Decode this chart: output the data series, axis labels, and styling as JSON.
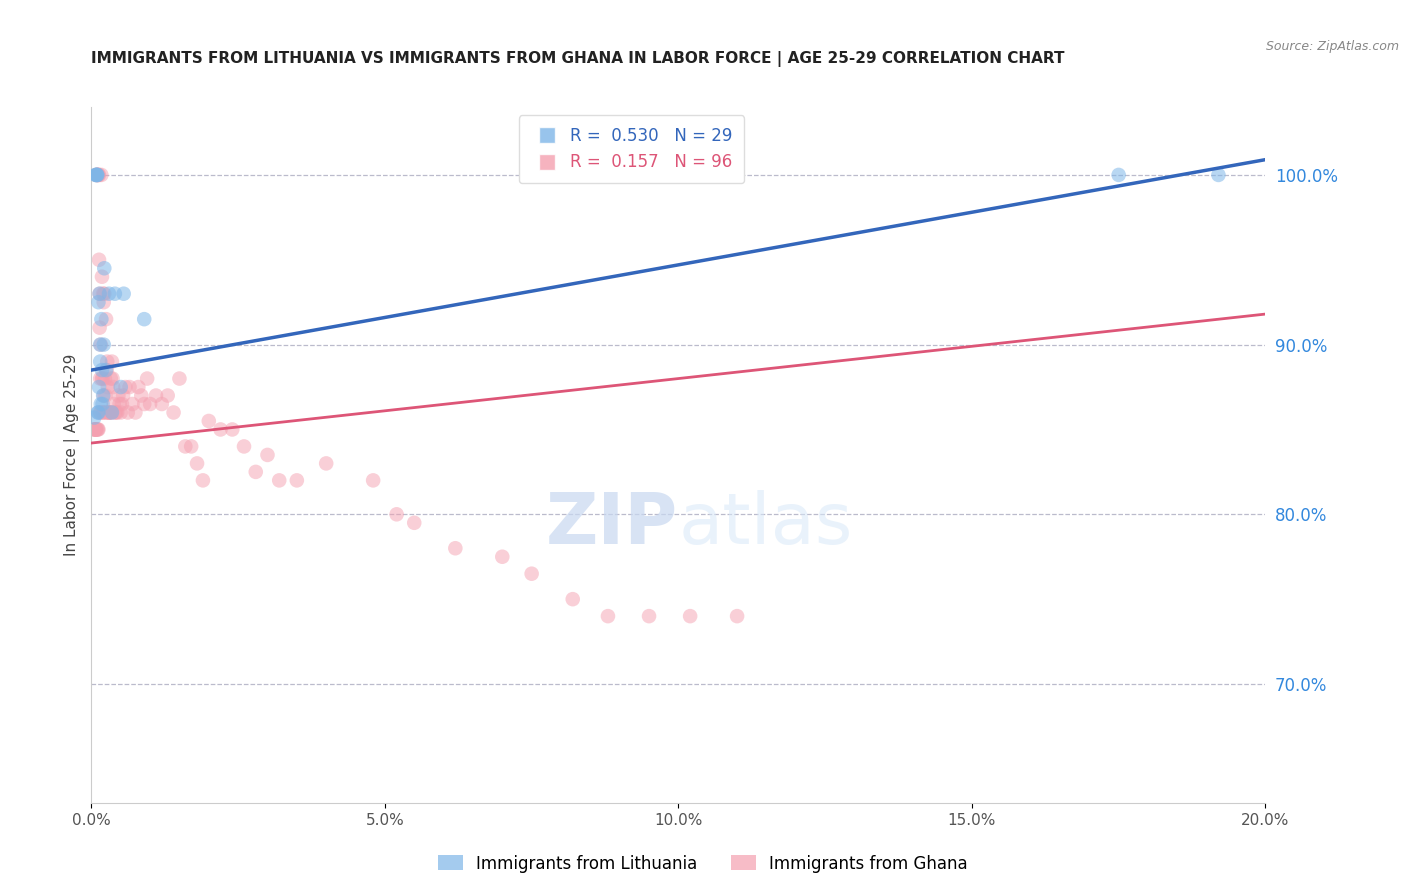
{
  "title": "IMMIGRANTS FROM LITHUANIA VS IMMIGRANTS FROM GHANA IN LABOR FORCE | AGE 25-29 CORRELATION CHART",
  "source": "Source: ZipAtlas.com",
  "ylabel": "In Labor Force | Age 25-29",
  "lithuania_label": "Immigrants from Lithuania",
  "ghana_label": "Immigrants from Ghana",
  "legend_R_blue": "R =  0.530",
  "legend_N_blue": "N = 29",
  "legend_R_pink": "R =  0.157",
  "legend_N_pink": "N = 96",
  "blue_color": "#7EB6E8",
  "pink_color": "#F4A0B0",
  "blue_line_color": "#3366BB",
  "pink_line_color": "#DD5577",
  "watermark_zip": "ZIP",
  "watermark_atlas": "atlas",
  "background_color": "#FFFFFF",
  "grid_color": "#BBBBCC",
  "title_color": "#222222",
  "right_axis_color": "#3388DD",
  "source_color": "#888888",
  "ylabel_color": "#444444",
  "xlim": [
    0.0,
    20.0
  ],
  "ylim": [
    63.0,
    104.0
  ],
  "yticks": [
    70.0,
    80.0,
    90.0,
    100.0
  ],
  "xticks": [
    0.0,
    5.0,
    10.0,
    15.0,
    20.0
  ],
  "lit_intercept": 88.5,
  "lit_slope": 0.62,
  "gha_intercept": 84.2,
  "gha_slope": 0.38,
  "lithuania_x": [
    0.05,
    0.07,
    0.08,
    0.09,
    0.1,
    0.1,
    0.11,
    0.12,
    0.12,
    0.13,
    0.14,
    0.15,
    0.15,
    0.16,
    0.17,
    0.18,
    0.19,
    0.2,
    0.21,
    0.22,
    0.25,
    0.3,
    0.35,
    0.4,
    0.5,
    0.55,
    0.9,
    17.5,
    19.2
  ],
  "lithuania_y": [
    85.7,
    100.0,
    100.0,
    100.0,
    100.0,
    100.0,
    86.0,
    92.5,
    86.0,
    87.5,
    93.0,
    90.0,
    89.0,
    86.5,
    91.5,
    88.5,
    86.5,
    87.0,
    90.0,
    94.5,
    88.5,
    93.0,
    86.0,
    93.0,
    87.5,
    93.0,
    91.5,
    100.0,
    100.0
  ],
  "ghana_x": [
    0.04,
    0.05,
    0.06,
    0.07,
    0.08,
    0.08,
    0.09,
    0.09,
    0.1,
    0.1,
    0.11,
    0.11,
    0.12,
    0.12,
    0.13,
    0.13,
    0.14,
    0.14,
    0.15,
    0.15,
    0.16,
    0.16,
    0.17,
    0.18,
    0.18,
    0.19,
    0.2,
    0.2,
    0.21,
    0.21,
    0.22,
    0.22,
    0.23,
    0.24,
    0.25,
    0.25,
    0.26,
    0.27,
    0.28,
    0.29,
    0.3,
    0.3,
    0.32,
    0.33,
    0.34,
    0.35,
    0.36,
    0.37,
    0.38,
    0.4,
    0.42,
    0.44,
    0.46,
    0.48,
    0.5,
    0.52,
    0.54,
    0.58,
    0.62,
    0.65,
    0.7,
    0.75,
    0.8,
    0.85,
    0.9,
    0.95,
    1.0,
    1.1,
    1.2,
    1.3,
    1.4,
    1.5,
    1.6,
    1.7,
    1.8,
    1.9,
    2.0,
    2.2,
    2.4,
    2.6,
    2.8,
    3.0,
    3.2,
    3.5,
    4.0,
    4.8,
    5.2,
    5.5,
    6.2,
    7.0,
    7.5,
    8.2,
    8.8,
    9.5,
    10.2,
    11.0
  ],
  "ghana_y": [
    85.0,
    85.0,
    85.0,
    85.0,
    85.0,
    85.0,
    100.0,
    100.0,
    100.0,
    85.0,
    100.0,
    85.0,
    100.0,
    85.0,
    100.0,
    95.0,
    93.0,
    91.0,
    88.0,
    86.0,
    90.0,
    86.0,
    100.0,
    94.0,
    88.0,
    88.0,
    93.0,
    86.0,
    92.5,
    87.0,
    93.0,
    86.0,
    88.0,
    87.0,
    91.5,
    86.0,
    88.5,
    89.0,
    87.5,
    86.0,
    86.0,
    86.0,
    86.0,
    88.0,
    86.0,
    89.0,
    88.0,
    87.5,
    86.5,
    86.0,
    86.0,
    86.0,
    87.0,
    86.5,
    86.0,
    86.5,
    87.0,
    87.5,
    86.0,
    87.5,
    86.5,
    86.0,
    87.5,
    87.0,
    86.5,
    88.0,
    86.5,
    87.0,
    86.5,
    87.0,
    86.0,
    88.0,
    84.0,
    84.0,
    83.0,
    82.0,
    85.5,
    85.0,
    85.0,
    84.0,
    82.5,
    83.5,
    82.0,
    82.0,
    83.0,
    82.0,
    80.0,
    79.5,
    78.0,
    77.5,
    76.5,
    75.0,
    74.0,
    74.0,
    74.0,
    74.0
  ]
}
